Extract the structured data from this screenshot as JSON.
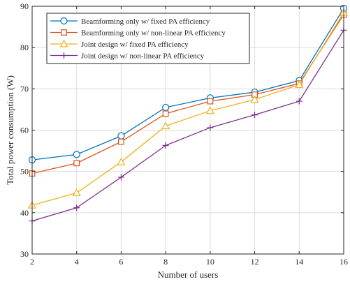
{
  "chart_data": {
    "type": "line",
    "xlabel": "Number of users",
    "ylabel": "Total power consumption (W)",
    "xlim": [
      2,
      16
    ],
    "ylim": [
      30,
      90
    ],
    "xticks": [
      "2",
      "4",
      "6",
      "8",
      "10",
      "12",
      "14",
      "16"
    ],
    "yticks": [
      "30",
      "40",
      "50",
      "60",
      "70",
      "80",
      "90"
    ],
    "grid": true,
    "legend_position": "top-left",
    "x": [
      2,
      4,
      6,
      8,
      10,
      12,
      14,
      16
    ],
    "series": [
      {
        "name": "Beamforming only w/ fixed PA efficiency",
        "color": "#0072BD",
        "marker": "circle",
        "values": [
          52.8,
          54.1,
          58.6,
          65.5,
          67.8,
          69.2,
          72.0,
          89.5
        ]
      },
      {
        "name": "Beamforming only w/ non-linear PA efficiency",
        "color": "#D95319",
        "marker": "square",
        "values": [
          49.5,
          52.0,
          57.2,
          64.0,
          67.0,
          68.6,
          71.3,
          88.0
        ]
      },
      {
        "name": "Joint design w/ fixed PA efficiency",
        "color": "#EDB120",
        "marker": "triangle",
        "values": [
          41.8,
          44.8,
          52.3,
          61.0,
          64.7,
          67.4,
          71.0,
          88.5
        ]
      },
      {
        "name": "Joint design w/ non-linear PA efficiency",
        "color": "#7E2F8E",
        "marker": "plus",
        "values": [
          38.0,
          41.2,
          48.6,
          56.3,
          60.6,
          63.7,
          67.0,
          84.2
        ]
      }
    ]
  }
}
